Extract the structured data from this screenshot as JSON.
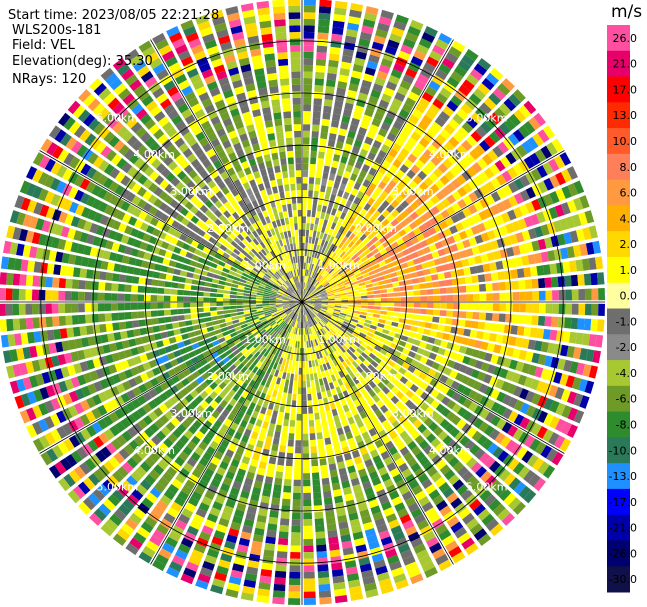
{
  "header": {
    "start_time": "Start time: 2023/08/05 22:21:28",
    "instrument": "WLS200s-181",
    "field": "Field: VEL",
    "elevation": "Elevation(deg): 35.30",
    "nrays": "NRays: 120"
  },
  "range_rings": [
    {
      "km": 1,
      "label": "1.00km"
    },
    {
      "km": 2,
      "label": "2.00km"
    },
    {
      "km": 3,
      "label": "3.00km"
    },
    {
      "km": 4,
      "label": "4.00km"
    },
    {
      "km": 5,
      "label": "5.00km"
    }
  ],
  "max_range_km": 5.8,
  "nrays": 120,
  "colorbar": {
    "title": "m/s",
    "ticks": [
      "26.0",
      "21.0",
      "17.0",
      "13.0",
      "10.0",
      "8.0",
      "6.0",
      "4.0",
      "2.0",
      "1.0",
      "0.0",
      "-1.0",
      "-2.0",
      "-4.0",
      "-6.0",
      "-8.0",
      "-10.0",
      "-13.0",
      "-17.0",
      "-21.0",
      "-26.0",
      "-30.0"
    ],
    "colors": [
      "#ff4fa0",
      "#e8006a",
      "#ff0000",
      "#ff2a00",
      "#ff5a2a",
      "#ff7f5a",
      "#ff9a40",
      "#ffb000",
      "#ffd800",
      "#ffff00",
      "#ffffa0",
      "#6e6e6e",
      "#8a8a8a",
      "#a8c832",
      "#6e9a28",
      "#2e8b2e",
      "#2a7a5a",
      "#1e90ff",
      "#0000ff",
      "#0000aa",
      "#00006e",
      "#10104a"
    ]
  }
}
